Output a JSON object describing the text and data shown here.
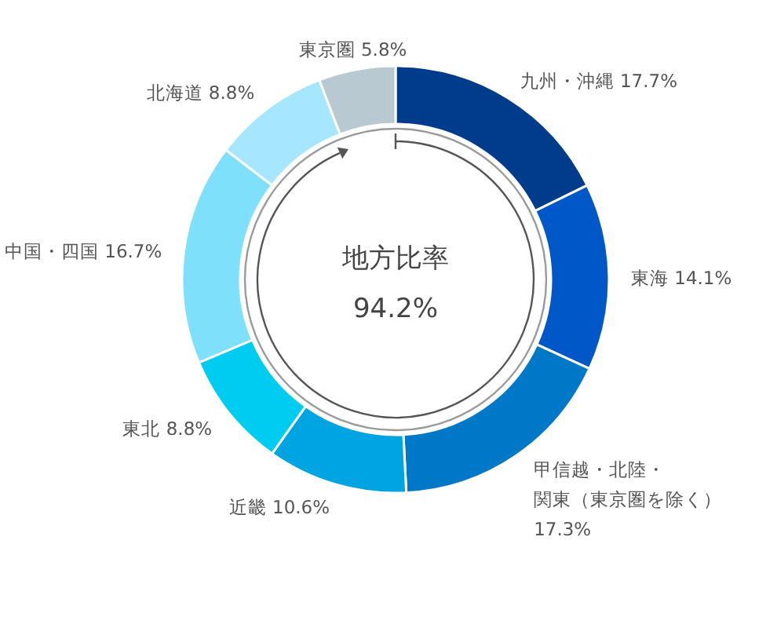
{
  "chart_data": {
    "type": "donut",
    "title": "地方比率",
    "annotations": [
      "94.2%"
    ],
    "categories": [
      "九州・沖縄",
      "東海",
      "甲信越・北陸・関東（東京圏を除く）",
      "近畿",
      "東北",
      "中国・四国",
      "北海道",
      "東京圏"
    ],
    "values": [
      17.7,
      14.1,
      17.3,
      10.6,
      8.8,
      16.7,
      8.8,
      5.8
    ],
    "colors": [
      "#003b8c",
      "#0058c8",
      "#0078c8",
      "#00a4e0",
      "#00ccf2",
      "#7fe0fc",
      "#a6e6ff",
      "#b8c9d2"
    ],
    "value_labels": [
      "17.7%",
      "14.1%",
      "17.3%",
      "10.6%",
      "8.8%",
      "16.7%",
      "8.8%",
      "5.8%"
    ]
  }
}
